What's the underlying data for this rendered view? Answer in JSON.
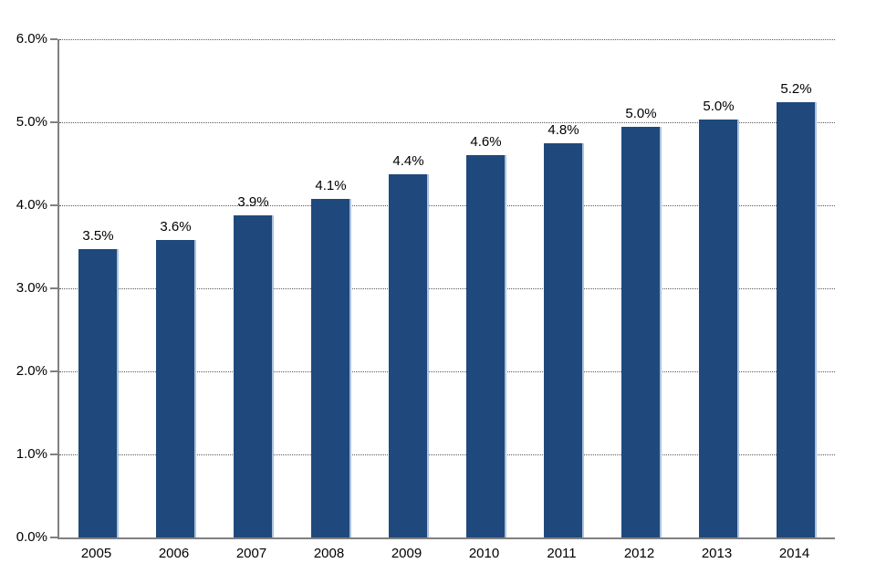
{
  "chart_data": {
    "type": "bar",
    "title": "",
    "xlabel": "",
    "ylabel": "",
    "categories": [
      "2005",
      "2006",
      "2007",
      "2008",
      "2009",
      "2010",
      "2011",
      "2012",
      "2013",
      "2014"
    ],
    "values": [
      3.5,
      3.6,
      3.9,
      4.1,
      4.4,
      4.6,
      4.8,
      5.0,
      5.0,
      5.2
    ],
    "bar_labels": [
      "3.5%",
      "3.6%",
      "3.9%",
      "4.1%",
      "4.4%",
      "4.6%",
      "4.8%",
      "5.0%",
      "5.0%",
      "5.2%"
    ],
    "bar_heights_precise": [
      3.47,
      3.58,
      3.88,
      4.08,
      4.37,
      4.6,
      4.75,
      4.95,
      5.03,
      5.24
    ],
    "ylim": [
      0,
      6
    ],
    "ytick_interval": 1.0,
    "ytick_labels": [
      "0.0%",
      "1.0%",
      "2.0%",
      "3.0%",
      "4.0%",
      "5.0%",
      "6.0%"
    ],
    "grid": "horizontal-dotted",
    "legend": "none",
    "colors": {
      "bar_fill": "#1F497D",
      "bar_right_edge": "#AEC3DE",
      "axis": "#808080",
      "gridline": "#595959",
      "text": "#000000",
      "background": "#FFFFFF"
    }
  }
}
